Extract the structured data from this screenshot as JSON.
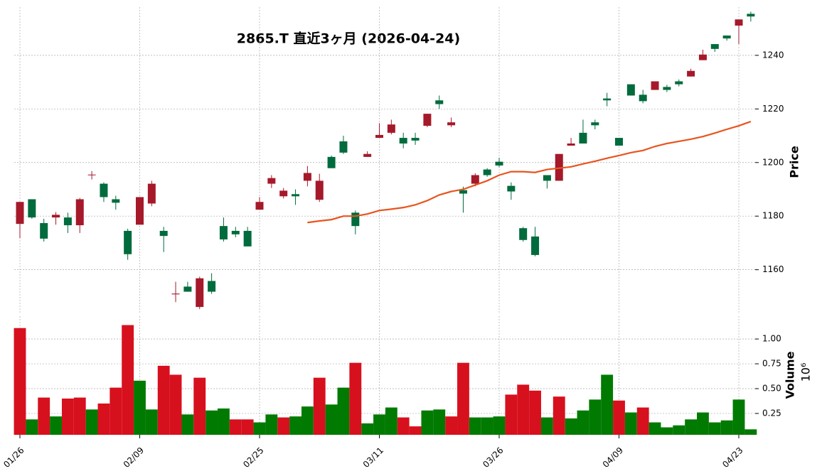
{
  "chart_data": [
    {
      "type": "candlestick",
      "title": "2865.T  直近3ヶ月  (2026-04-24)",
      "ylabel": "Price",
      "categories": [
        "01/26",
        null,
        null,
        null,
        null,
        null,
        null,
        null,
        null,
        null,
        "02/09",
        null,
        null,
        null,
        null,
        null,
        null,
        null,
        null,
        null,
        "02/25",
        null,
        null,
        null,
        null,
        null,
        null,
        null,
        null,
        null,
        "03/11",
        null,
        null,
        null,
        null,
        null,
        null,
        null,
        null,
        null,
        "03/26",
        null,
        null,
        null,
        null,
        null,
        null,
        null,
        null,
        null,
        "04/09",
        null,
        null,
        null,
        null,
        null,
        null,
        null,
        null,
        null,
        "04/23",
        null
      ],
      "open": [
        1185.3,
        1179.5,
        1171.6,
        1180.5,
        1176.6,
        1186.3,
        1195.5,
        1187.1,
        1185.0,
        1165.8,
        1187.1,
        1192.1,
        1172.6,
        1151.1,
        1151.8,
        1156.8,
        1151.8,
        1171.3,
        1173.2,
        1168.7,
        1185.3,
        1194.2,
        1189.5,
        1187.4,
        1196.1,
        1193.2,
        1197.9,
        1203.7,
        1176.3,
        1203.2,
        1210.3,
        1214.2,
        1207.1,
        1208.2,
        1218.2,
        1221.8,
        1215.0,
        1188.4,
        1195.3,
        1195.3,
        1198.9,
        1189.2,
        1171.1,
        1165.5,
        1193.2,
        1203.2,
        1207.1,
        1207.1,
        1213.9,
        1223.2,
        1206.3,
        1225.0,
        1222.9,
        1230.3,
        1227.1,
        1229.2,
        1234.2,
        1240.3,
        1242.4,
        1246.3,
        1253.4,
        1254.5
      ],
      "high": [
        1185.3,
        1186.3,
        1179.0,
        1181.5,
        1181.3,
        1186.8,
        1196.8,
        1192.6,
        1187.6,
        1175.3,
        1187.1,
        1193.2,
        1176.0,
        1155.5,
        1155.5,
        1157.4,
        1158.7,
        1179.5,
        1176.0,
        1176.0,
        1187.1,
        1195.3,
        1190.5,
        1190.0,
        1198.7,
        1195.8,
        1202.6,
        1210.0,
        1182.1,
        1204.2,
        1214.7,
        1216.0,
        1211.1,
        1211.1,
        1218.2,
        1225.0,
        1216.8,
        1191.0,
        1196.0,
        1197.9,
        1201.8,
        1192.6,
        1176.0,
        1176.0,
        1195.3,
        1203.2,
        1209.2,
        1216.0,
        1216.0,
        1226.0,
        1209.2,
        1229.2,
        1227.1,
        1230.3,
        1229.0,
        1231.0,
        1235.0,
        1242.1,
        1244.2,
        1247.4,
        1253.4,
        1256.3
      ],
      "low": [
        1171.8,
        1179.0,
        1170.5,
        1176.8,
        1173.7,
        1173.7,
        1193.7,
        1185.3,
        1182.4,
        1163.7,
        1176.8,
        1183.7,
        1166.6,
        1147.9,
        1151.8,
        1145.3,
        1151.0,
        1170.5,
        1172.1,
        1168.7,
        1182.4,
        1190.5,
        1186.6,
        1184.2,
        1191.1,
        1185.3,
        1197.9,
        1203.2,
        1173.2,
        1202.1,
        1209.2,
        1210.5,
        1205.3,
        1206.6,
        1213.2,
        1220.0,
        1213.2,
        1181.3,
        1191.1,
        1194.7,
        1198.2,
        1186.1,
        1170.5,
        1165.0,
        1190.3,
        1193.2,
        1206.3,
        1207.1,
        1212.4,
        1221.0,
        1206.3,
        1225.0,
        1222.1,
        1227.1,
        1226.3,
        1228.4,
        1232.1,
        1238.2,
        1241.3,
        1245.5,
        1244.2,
        1252.6
      ],
      "close": [
        1177.1,
        1186.3,
        1177.4,
        1179.5,
        1179.5,
        1176.6,
        1195.3,
        1192.1,
        1186.3,
        1174.5,
        1176.8,
        1184.7,
        1174.5,
        1150.8,
        1153.7,
        1146.1,
        1155.8,
        1176.3,
        1174.5,
        1174.5,
        1182.4,
        1192.1,
        1187.4,
        1188.2,
        1193.2,
        1186.1,
        1202.1,
        1207.9,
        1181.3,
        1202.1,
        1209.2,
        1211.1,
        1209.2,
        1209.2,
        1213.7,
        1223.2,
        1213.9,
        1189.7,
        1192.1,
        1197.4,
        1200.3,
        1191.3,
        1175.5,
        1172.4,
        1195.3,
        1193.2,
        1206.3,
        1211.1,
        1215.0,
        1223.9,
        1209.2,
        1229.2,
        1225.3,
        1227.1,
        1228.2,
        1230.3,
        1232.1,
        1238.2,
        1244.2,
        1247.4,
        1251.1,
        1255.5
      ],
      "up_color": "#006b3c",
      "down_color": "#a5192a",
      "line": {
        "color": "#e8541e",
        "values": [
          null,
          null,
          null,
          null,
          null,
          null,
          null,
          null,
          null,
          null,
          null,
          null,
          null,
          null,
          null,
          null,
          null,
          null,
          null,
          null,
          null,
          null,
          null,
          null,
          1177.6,
          1178.2,
          1178.7,
          1180.0,
          1180.0,
          1180.8,
          1182.1,
          1182.6,
          1183.2,
          1184.2,
          1185.8,
          1187.9,
          1189.2,
          1190.0,
          1191.6,
          1193.2,
          1195.3,
          1196.6,
          1196.6,
          1196.3,
          1197.4,
          1197.9,
          1198.4,
          1199.5,
          1200.5,
          1201.6,
          1202.6,
          1203.7,
          1204.5,
          1206.0,
          1207.1,
          1207.9,
          1208.7,
          1209.7,
          1211.0,
          1212.4,
          1213.7,
          1215.3
        ]
      },
      "ylim": [
        1144,
        1258
      ],
      "yticks": [
        1160,
        1180,
        1200,
        1220,
        1240
      ],
      "grid": true
    },
    {
      "type": "bar",
      "ylabel": "Volume",
      "ylabel_scale": "10⁶",
      "values": [
        1.11,
        0.19,
        0.41,
        0.22,
        0.4,
        0.41,
        0.29,
        0.35,
        0.51,
        1.14,
        0.58,
        0.29,
        0.73,
        0.64,
        0.24,
        0.61,
        0.28,
        0.3,
        0.19,
        0.19,
        0.16,
        0.24,
        0.21,
        0.22,
        0.32,
        0.61,
        0.34,
        0.51,
        0.76,
        0.15,
        0.24,
        0.31,
        0.21,
        0.12,
        0.28,
        0.29,
        0.22,
        0.76,
        0.21,
        0.21,
        0.22,
        0.44,
        0.54,
        0.48,
        0.21,
        0.42,
        0.2,
        0.28,
        0.39,
        0.64,
        0.38,
        0.26,
        0.31,
        0.16,
        0.11,
        0.13,
        0.19,
        0.26,
        0.16,
        0.18,
        0.39,
        0.09
      ],
      "colors": [
        "#d7101e",
        "#007a00",
        "#d7101e",
        "#007a00",
        "#d7101e",
        "#d7101e",
        "#007a00",
        "#d7101e",
        "#d7101e",
        "#d7101e",
        "#007a00",
        "#007a00",
        "#d7101e",
        "#d7101e",
        "#007a00",
        "#d7101e",
        "#007a00",
        "#007a00",
        "#d7101e",
        "#d7101e",
        "#007a00",
        "#007a00",
        "#d7101e",
        "#007a00",
        "#007a00",
        "#d7101e",
        "#007a00",
        "#007a00",
        "#d7101e",
        "#007a00",
        "#007a00",
        "#007a00",
        "#d7101e",
        "#d7101e",
        "#007a00",
        "#007a00",
        "#d7101e",
        "#d7101e",
        "#007a00",
        "#007a00",
        "#007a00",
        "#d7101e",
        "#d7101e",
        "#d7101e",
        "#007a00",
        "#d7101e",
        "#007a00",
        "#007a00",
        "#007a00",
        "#007a00",
        "#d7101e",
        "#007a00",
        "#d7101e",
        "#007a00",
        "#007a00",
        "#007a00",
        "#007a00",
        "#007a00",
        "#007a00",
        "#007a00",
        "#007a00",
        "#007a00"
      ],
      "ylim": [
        0.035,
        1.23
      ],
      "yticks": [
        {
          "value": 0.25,
          "label": "0.25"
        },
        {
          "value": 0.5,
          "label": "0.50"
        },
        {
          "value": 0.75,
          "label": "0.75"
        },
        {
          "value": 1,
          "label": "1.00"
        }
      ],
      "grid": true
    }
  ]
}
